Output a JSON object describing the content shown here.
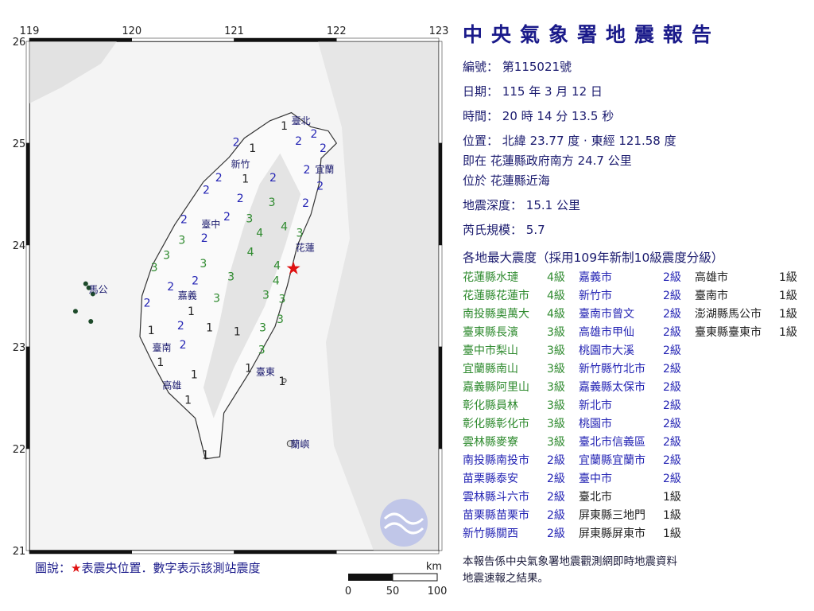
{
  "report": {
    "title": "中央氣象署地震報告",
    "number_label": "編號：",
    "number_value": "第115021號",
    "date_label": "日期：",
    "date_value": "115 年 3 月 12 日",
    "time_label": "時間：",
    "time_value": "20 時 14 分 13.5 秒",
    "location_label": "位置：",
    "location_value": "北緯 23.77 度 · 東經 121.58 度",
    "relative_label": "即在",
    "relative_value": "花蓮縣政府南方 24.7 公里",
    "area_label": "位於",
    "area_value": "花蓮縣近海",
    "depth_label": "地震深度：",
    "depth_value": "15.1 公里",
    "magnitude_label": "芮氏規模：",
    "magnitude_value": "5.7",
    "intensity_header": "各地最大震度（採用109年新制10級震度分級）"
  },
  "intensity_table": [
    [
      {
        "name": "花蓮縣水璉",
        "level": "4級",
        "i": 4
      },
      {
        "name": "嘉義市",
        "level": "2級",
        "i": 2
      },
      {
        "name": "高雄市",
        "level": "1級",
        "i": 1
      }
    ],
    [
      {
        "name": "花蓮縣花蓮市",
        "level": "4級",
        "i": 4
      },
      {
        "name": "新竹市",
        "level": "2級",
        "i": 2
      },
      {
        "name": "臺南市",
        "level": "1級",
        "i": 1
      }
    ],
    [
      {
        "name": "南投縣奧萬大",
        "level": "4級",
        "i": 4
      },
      {
        "name": "臺南市曾文",
        "level": "2級",
        "i": 2
      },
      {
        "name": "澎湖縣馬公市",
        "level": "1級",
        "i": 1
      }
    ],
    [
      {
        "name": "臺東縣長濱",
        "level": "3級",
        "i": 3
      },
      {
        "name": "高雄市甲仙",
        "level": "2級",
        "i": 2
      },
      {
        "name": "臺東縣臺東市",
        "level": "1級",
        "i": 1
      }
    ],
    [
      {
        "name": "臺中市梨山",
        "level": "3級",
        "i": 3
      },
      {
        "name": "桃園市大溪",
        "level": "2級",
        "i": 2
      }
    ],
    [
      {
        "name": "宜蘭縣南山",
        "level": "3級",
        "i": 3
      },
      {
        "name": "新竹縣竹北市",
        "level": "2級",
        "i": 2
      }
    ],
    [
      {
        "name": "嘉義縣阿里山",
        "level": "3級",
        "i": 3
      },
      {
        "name": "嘉義縣太保市",
        "level": "2級",
        "i": 2
      }
    ],
    [
      {
        "name": "彰化縣員林",
        "level": "3級",
        "i": 3
      },
      {
        "name": "新北市",
        "level": "2級",
        "i": 2
      }
    ],
    [
      {
        "name": "彰化縣彰化市",
        "level": "3級",
        "i": 3
      },
      {
        "name": "桃園市",
        "level": "2級",
        "i": 2
      }
    ],
    [
      {
        "name": "雲林縣麥寮",
        "level": "3級",
        "i": 3
      },
      {
        "name": "臺北市信義區",
        "level": "2級",
        "i": 2
      }
    ],
    [
      {
        "name": "南投縣南投市",
        "level": "2級",
        "i": 2
      },
      {
        "name": "宜蘭縣宜蘭市",
        "level": "2級",
        "i": 2
      }
    ],
    [
      {
        "name": "苗栗縣泰安",
        "level": "2級",
        "i": 2
      },
      {
        "name": "臺中市",
        "level": "2級",
        "i": 2
      }
    ],
    [
      {
        "name": "雲林縣斗六市",
        "level": "2級",
        "i": 2
      },
      {
        "name": "臺北市",
        "level": "1級",
        "i": 1
      }
    ],
    [
      {
        "name": "苗栗縣苗栗市",
        "level": "2級",
        "i": 2
      },
      {
        "name": "屏東縣三地門",
        "level": "1級",
        "i": 1
      }
    ],
    [
      {
        "name": "新竹縣關西",
        "level": "2級",
        "i": 2
      },
      {
        "name": "屏東縣屏東市",
        "level": "1級",
        "i": 1
      }
    ]
  ],
  "footer": {
    "line1": "本報告係中央氣象署地震觀測網即時地震資料",
    "line2": "地震速報之結果。"
  },
  "legend": {
    "prefix": "圖說：",
    "star": "★",
    "text": "表震央位置．數字表示該測站震度"
  },
  "scale_bar": {
    "unit": "km",
    "ticks": [
      "0",
      "50",
      "100"
    ]
  },
  "map": {
    "lon_ticks": [
      "119",
      "120",
      "121",
      "122",
      "123"
    ],
    "lat_ticks": [
      "26",
      "25",
      "24",
      "23",
      "22",
      "21"
    ],
    "lon_range": [
      119,
      123
    ],
    "lat_range": [
      21,
      26
    ],
    "epicenter": {
      "lon": 121.58,
      "lat": 23.77,
      "color": "#e01010"
    },
    "cities": [
      {
        "name": "臺北",
        "lon": 121.56,
        "lat": 25.04
      },
      {
        "name": "新竹",
        "lon": 120.97,
        "lat": 24.8
      },
      {
        "name": "宜蘭",
        "lon": 121.76,
        "lat": 24.75
      },
      {
        "name": "臺中",
        "lon": 120.68,
        "lat": 24.15
      },
      {
        "name": "花蓮",
        "lon": 121.6,
        "lat": 23.98
      },
      {
        "name": "馬公",
        "lon": 119.58,
        "lat": 23.57
      },
      {
        "name": "嘉義",
        "lon": 120.45,
        "lat": 23.48
      },
      {
        "name": "臺南",
        "lon": 120.2,
        "lat": 23.0
      },
      {
        "name": "高雄",
        "lon": 120.3,
        "lat": 22.63
      },
      {
        "name": "臺東",
        "lon": 121.15,
        "lat": 22.76
      },
      {
        "name": "蘭嶼",
        "lon": 121.55,
        "lat": 22.05
      }
    ],
    "intensity_colors": {
      "1": "#222222",
      "2": "#2424b4",
      "3": "#2e8a2e",
      "4": "#2e8a2e"
    },
    "stations": [
      [
        121.49,
        25.18,
        1
      ],
      [
        121.63,
        25.03,
        2
      ],
      [
        121.02,
        25.02,
        2
      ],
      [
        121.18,
        24.96,
        1
      ],
      [
        121.78,
        25.1,
        2
      ],
      [
        121.87,
        24.96,
        2
      ],
      [
        121.71,
        24.75,
        2
      ],
      [
        121.84,
        24.59,
        2
      ],
      [
        120.85,
        24.67,
        2
      ],
      [
        121.11,
        24.66,
        1
      ],
      [
        121.38,
        24.67,
        2
      ],
      [
        120.79,
        24.55,
        2
      ],
      [
        121.06,
        24.47,
        2
      ],
      [
        121.37,
        24.43,
        3
      ],
      [
        121.7,
        24.42,
        2
      ],
      [
        121.15,
        24.27,
        3
      ],
      [
        120.51,
        24.26,
        2
      ],
      [
        120.93,
        24.29,
        2
      ],
      [
        120.49,
        24.06,
        3
      ],
      [
        120.71,
        24.08,
        2
      ],
      [
        121.25,
        24.13,
        4
      ],
      [
        121.49,
        24.19,
        4
      ],
      [
        121.64,
        24.13,
        3
      ],
      [
        120.34,
        23.91,
        3
      ],
      [
        120.7,
        23.83,
        3
      ],
      [
        121.16,
        23.94,
        4
      ],
      [
        120.22,
        23.79,
        3
      ],
      [
        120.97,
        23.7,
        3
      ],
      [
        121.42,
        23.81,
        4
      ],
      [
        121.41,
        23.66,
        4
      ],
      [
        120.38,
        23.6,
        2
      ],
      [
        120.62,
        23.66,
        2
      ],
      [
        120.83,
        23.49,
        3
      ],
      [
        121.31,
        23.52,
        3
      ],
      [
        121.47,
        23.48,
        3
      ],
      [
        120.15,
        23.44,
        2
      ],
      [
        120.58,
        23.36,
        1
      ],
      [
        121.45,
        23.28,
        3
      ],
      [
        120.19,
        23.17,
        1
      ],
      [
        120.54,
        23.22,
        2
      ],
      [
        120.76,
        23.2,
        1
      ],
      [
        121.28,
        23.2,
        3
      ],
      [
        121.27,
        22.98,
        3
      ],
      [
        121.03,
        23.16,
        1
      ],
      [
        120.5,
        23.03,
        2
      ],
      [
        121.14,
        22.8,
        1
      ],
      [
        120.28,
        22.86,
        1
      ],
      [
        120.61,
        22.74,
        1
      ],
      [
        120.55,
        22.49,
        1
      ],
      [
        120.72,
        21.95,
        1
      ],
      [
        121.47,
        22.67,
        1
      ]
    ]
  }
}
